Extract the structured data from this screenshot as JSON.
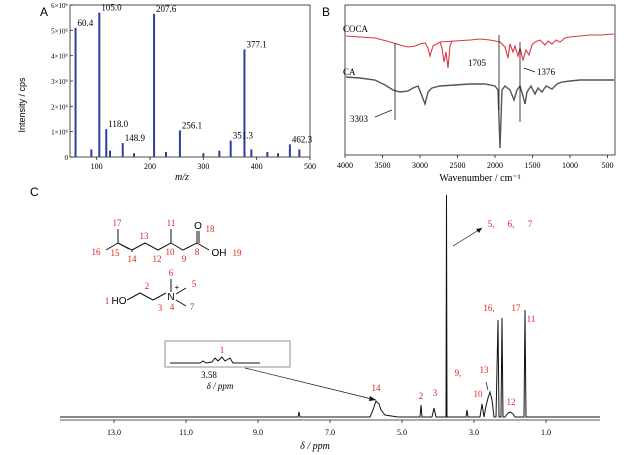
{
  "panels": {
    "A": {
      "letter": "A",
      "ylabel": "Intensity / cps",
      "xlabel": "m/z",
      "chart_data": {
        "type": "bar",
        "xlim": [
          50,
          500
        ],
        "ylim": [
          0,
          6000000
        ],
        "x_ticks": [
          "100",
          "200",
          "300",
          "400",
          "500"
        ],
        "y_ticks": [
          "0",
          "1×10⁶",
          "2×10⁶",
          "3×10⁶",
          "4×10⁶",
          "5×10⁶",
          "6×10⁶"
        ],
        "peaks": [
          {
            "mz": 60.4,
            "i": 5100000,
            "label": "60.4"
          },
          {
            "mz": 105.0,
            "i": 5700000,
            "label": "105.0"
          },
          {
            "mz": 118.0,
            "i": 1100000,
            "label": "118.0"
          },
          {
            "mz": 148.9,
            "i": 550000,
            "label": "148.9"
          },
          {
            "mz": 207.6,
            "i": 5650000,
            "label": "207.6"
          },
          {
            "mz": 256.1,
            "i": 1050000,
            "label": "256.1"
          },
          {
            "mz": 351.3,
            "i": 650000,
            "label": "351.3"
          },
          {
            "mz": 377.1,
            "i": 4250000,
            "label": "377.1"
          },
          {
            "mz": 462.3,
            "i": 500000,
            "label": "462.3"
          },
          {
            "mz": 90,
            "i": 300000,
            "label": ""
          },
          {
            "mz": 125,
            "i": 250000,
            "label": ""
          },
          {
            "mz": 170,
            "i": 150000,
            "label": ""
          },
          {
            "mz": 230,
            "i": 200000,
            "label": ""
          },
          {
            "mz": 300,
            "i": 150000,
            "label": ""
          },
          {
            "mz": 330,
            "i": 250000,
            "label": ""
          },
          {
            "mz": 390,
            "i": 300000,
            "label": ""
          },
          {
            "mz": 420,
            "i": 200000,
            "label": ""
          },
          {
            "mz": 440,
            "i": 150000,
            "label": ""
          },
          {
            "mz": 480,
            "i": 300000,
            "label": ""
          }
        ],
        "colors": {
          "peaks": "#2d3f9a"
        }
      }
    },
    "B": {
      "letter": "B",
      "xlabel": "Wavenumber / cm⁻¹",
      "chart_data": {
        "type": "line",
        "xlim": [
          4000,
          400
        ],
        "x_ticks": [
          "4000",
          "3500",
          "3000",
          "2500",
          "2000",
          "1500",
          "1000",
          "500"
        ],
        "series": [
          {
            "name": "COCA",
            "color": "#d63a44"
          },
          {
            "name": "CA",
            "color": "#555555"
          }
        ],
        "annotations": [
          "3303",
          "1705",
          "1376"
        ]
      }
    },
    "C": {
      "letter": "C",
      "xlabel": "δ / ppm",
      "chart_data": {
        "type": "line",
        "xlim": [
          14.5,
          -0.5
        ],
        "x_ticks": [
          "13.0",
          "11.0",
          "9.0",
          "7.0",
          "5.0",
          "3.0",
          "1.0"
        ],
        "peak_labels": [
          "14",
          "2",
          "3",
          "9,",
          "10",
          "13",
          "12",
          "16,",
          "17",
          "11",
          "5,",
          "6,",
          "7",
          "1"
        ],
        "inset": {
          "tick": "3.58",
          "xlabel": "δ / ppm",
          "label": "1"
        },
        "color": "#111111"
      },
      "structure_labels": {
        "acid_numbers": [
          "17",
          "11",
          "18",
          "16",
          "15",
          "14",
          "13",
          "12",
          "10",
          "9",
          "8",
          "19"
        ],
        "acid_atoms": [
          "O",
          "OH"
        ],
        "cation_numbers": [
          "6",
          "5",
          "2",
          "1",
          "3",
          "4",
          "7"
        ],
        "cation_atoms": [
          "HO",
          "N",
          "+"
        ]
      }
    }
  }
}
